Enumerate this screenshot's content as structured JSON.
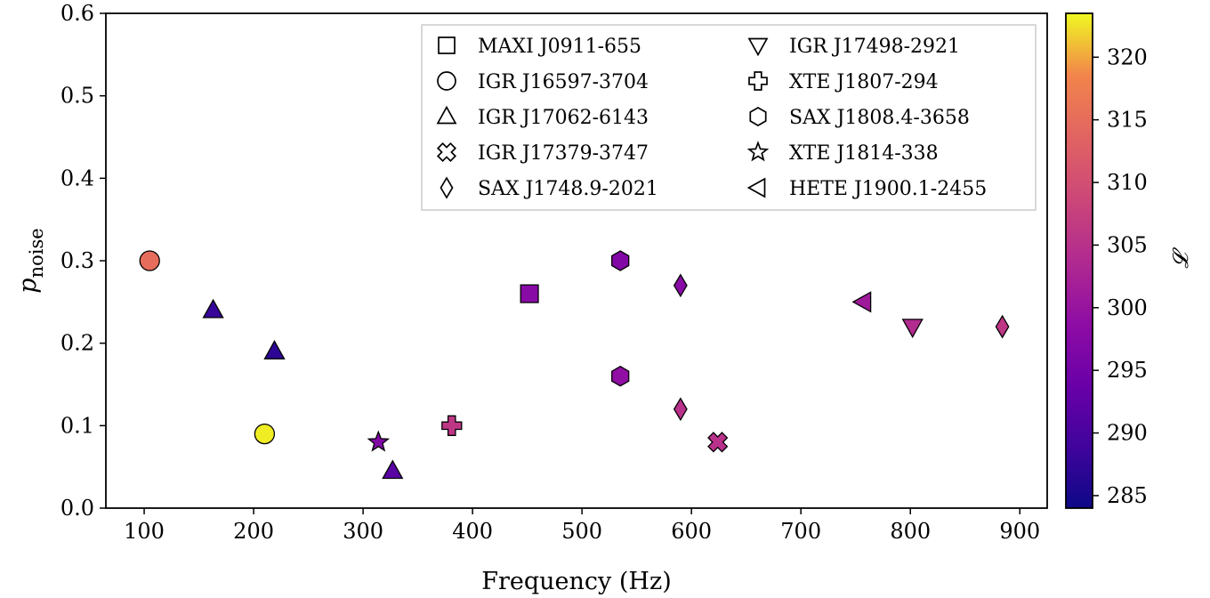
{
  "chart_data": {
    "type": "scatter",
    "xlabel": "Frequency (Hz)",
    "ylabel": "p",
    "ylabel_subscript": "noise",
    "xlim": [
      65,
      925
    ],
    "ylim": [
      0.0,
      0.6
    ],
    "xticks": [
      100,
      200,
      300,
      400,
      500,
      600,
      700,
      800,
      900
    ],
    "yticks": [
      0.0,
      0.1,
      0.2,
      0.3,
      0.4,
      0.5,
      0.6
    ],
    "colorbar": {
      "label": "𝓛",
      "range": [
        284,
        323.5
      ],
      "ticks": [
        285,
        290,
        295,
        300,
        305,
        310,
        315,
        320
      ],
      "colormap": "plasma"
    },
    "legend": {
      "placement": "top-right",
      "columns": 2,
      "entries": [
        {
          "name": "MAXI J0911-655",
          "marker": "square"
        },
        {
          "name": "IGR J16597-3704",
          "marker": "circle"
        },
        {
          "name": "IGR J17062-6143",
          "marker": "triangle-up"
        },
        {
          "name": "IGR J17379-3747",
          "marker": "x-filled"
        },
        {
          "name": "SAX J1748.9-2021",
          "marker": "diamond-thin"
        },
        {
          "name": "IGR J17498-2921",
          "marker": "triangle-down"
        },
        {
          "name": "XTE J1807-294",
          "marker": "plus-filled"
        },
        {
          "name": "SAX J1808.4-3658",
          "marker": "hexagon"
        },
        {
          "name": "XTE J1814-338",
          "marker": "star"
        },
        {
          "name": "HETE J1900.1-2455",
          "marker": "triangle-left"
        }
      ]
    },
    "series": [
      {
        "name": "MAXI J0911-655",
        "marker": "square",
        "points": [
          {
            "x": 452,
            "y": 0.26,
            "c": 298
          }
        ]
      },
      {
        "name": "IGR J16597-3704",
        "marker": "circle",
        "points": [
          {
            "x": 105,
            "y": 0.3,
            "c": 315
          },
          {
            "x": 210,
            "y": 0.09,
            "c": 323
          }
        ]
      },
      {
        "name": "IGR J17062-6143",
        "marker": "triangle-up",
        "points": [
          {
            "x": 163,
            "y": 0.24,
            "c": 288
          },
          {
            "x": 219,
            "y": 0.19,
            "c": 287
          },
          {
            "x": 327,
            "y": 0.045,
            "c": 292
          }
        ]
      },
      {
        "name": "IGR J17379-3747",
        "marker": "x-filled",
        "points": [
          {
            "x": 624,
            "y": 0.08,
            "c": 305
          }
        ]
      },
      {
        "name": "SAX J1748.9-2021",
        "marker": "diamond-thin",
        "points": [
          {
            "x": 590,
            "y": 0.27,
            "c": 298
          },
          {
            "x": 590,
            "y": 0.12,
            "c": 305
          },
          {
            "x": 884,
            "y": 0.22,
            "c": 306
          }
        ]
      },
      {
        "name": "IGR J17498-2921",
        "marker": "triangle-down",
        "points": [
          {
            "x": 802,
            "y": 0.22,
            "c": 304
          }
        ]
      },
      {
        "name": "XTE J1807-294",
        "marker": "plus-filled",
        "points": [
          {
            "x": 381,
            "y": 0.1,
            "c": 306
          }
        ]
      },
      {
        "name": "SAX J1808.4-3658",
        "marker": "hexagon",
        "points": [
          {
            "x": 535,
            "y": 0.3,
            "c": 297
          },
          {
            "x": 535,
            "y": 0.16,
            "c": 299
          }
        ]
      },
      {
        "name": "XTE J1814-338",
        "marker": "star",
        "points": [
          {
            "x": 314,
            "y": 0.08,
            "c": 297
          }
        ]
      },
      {
        "name": "HETE J1900.1-2455",
        "marker": "triangle-left",
        "points": [
          {
            "x": 757,
            "y": 0.25,
            "c": 301
          }
        ]
      }
    ]
  }
}
